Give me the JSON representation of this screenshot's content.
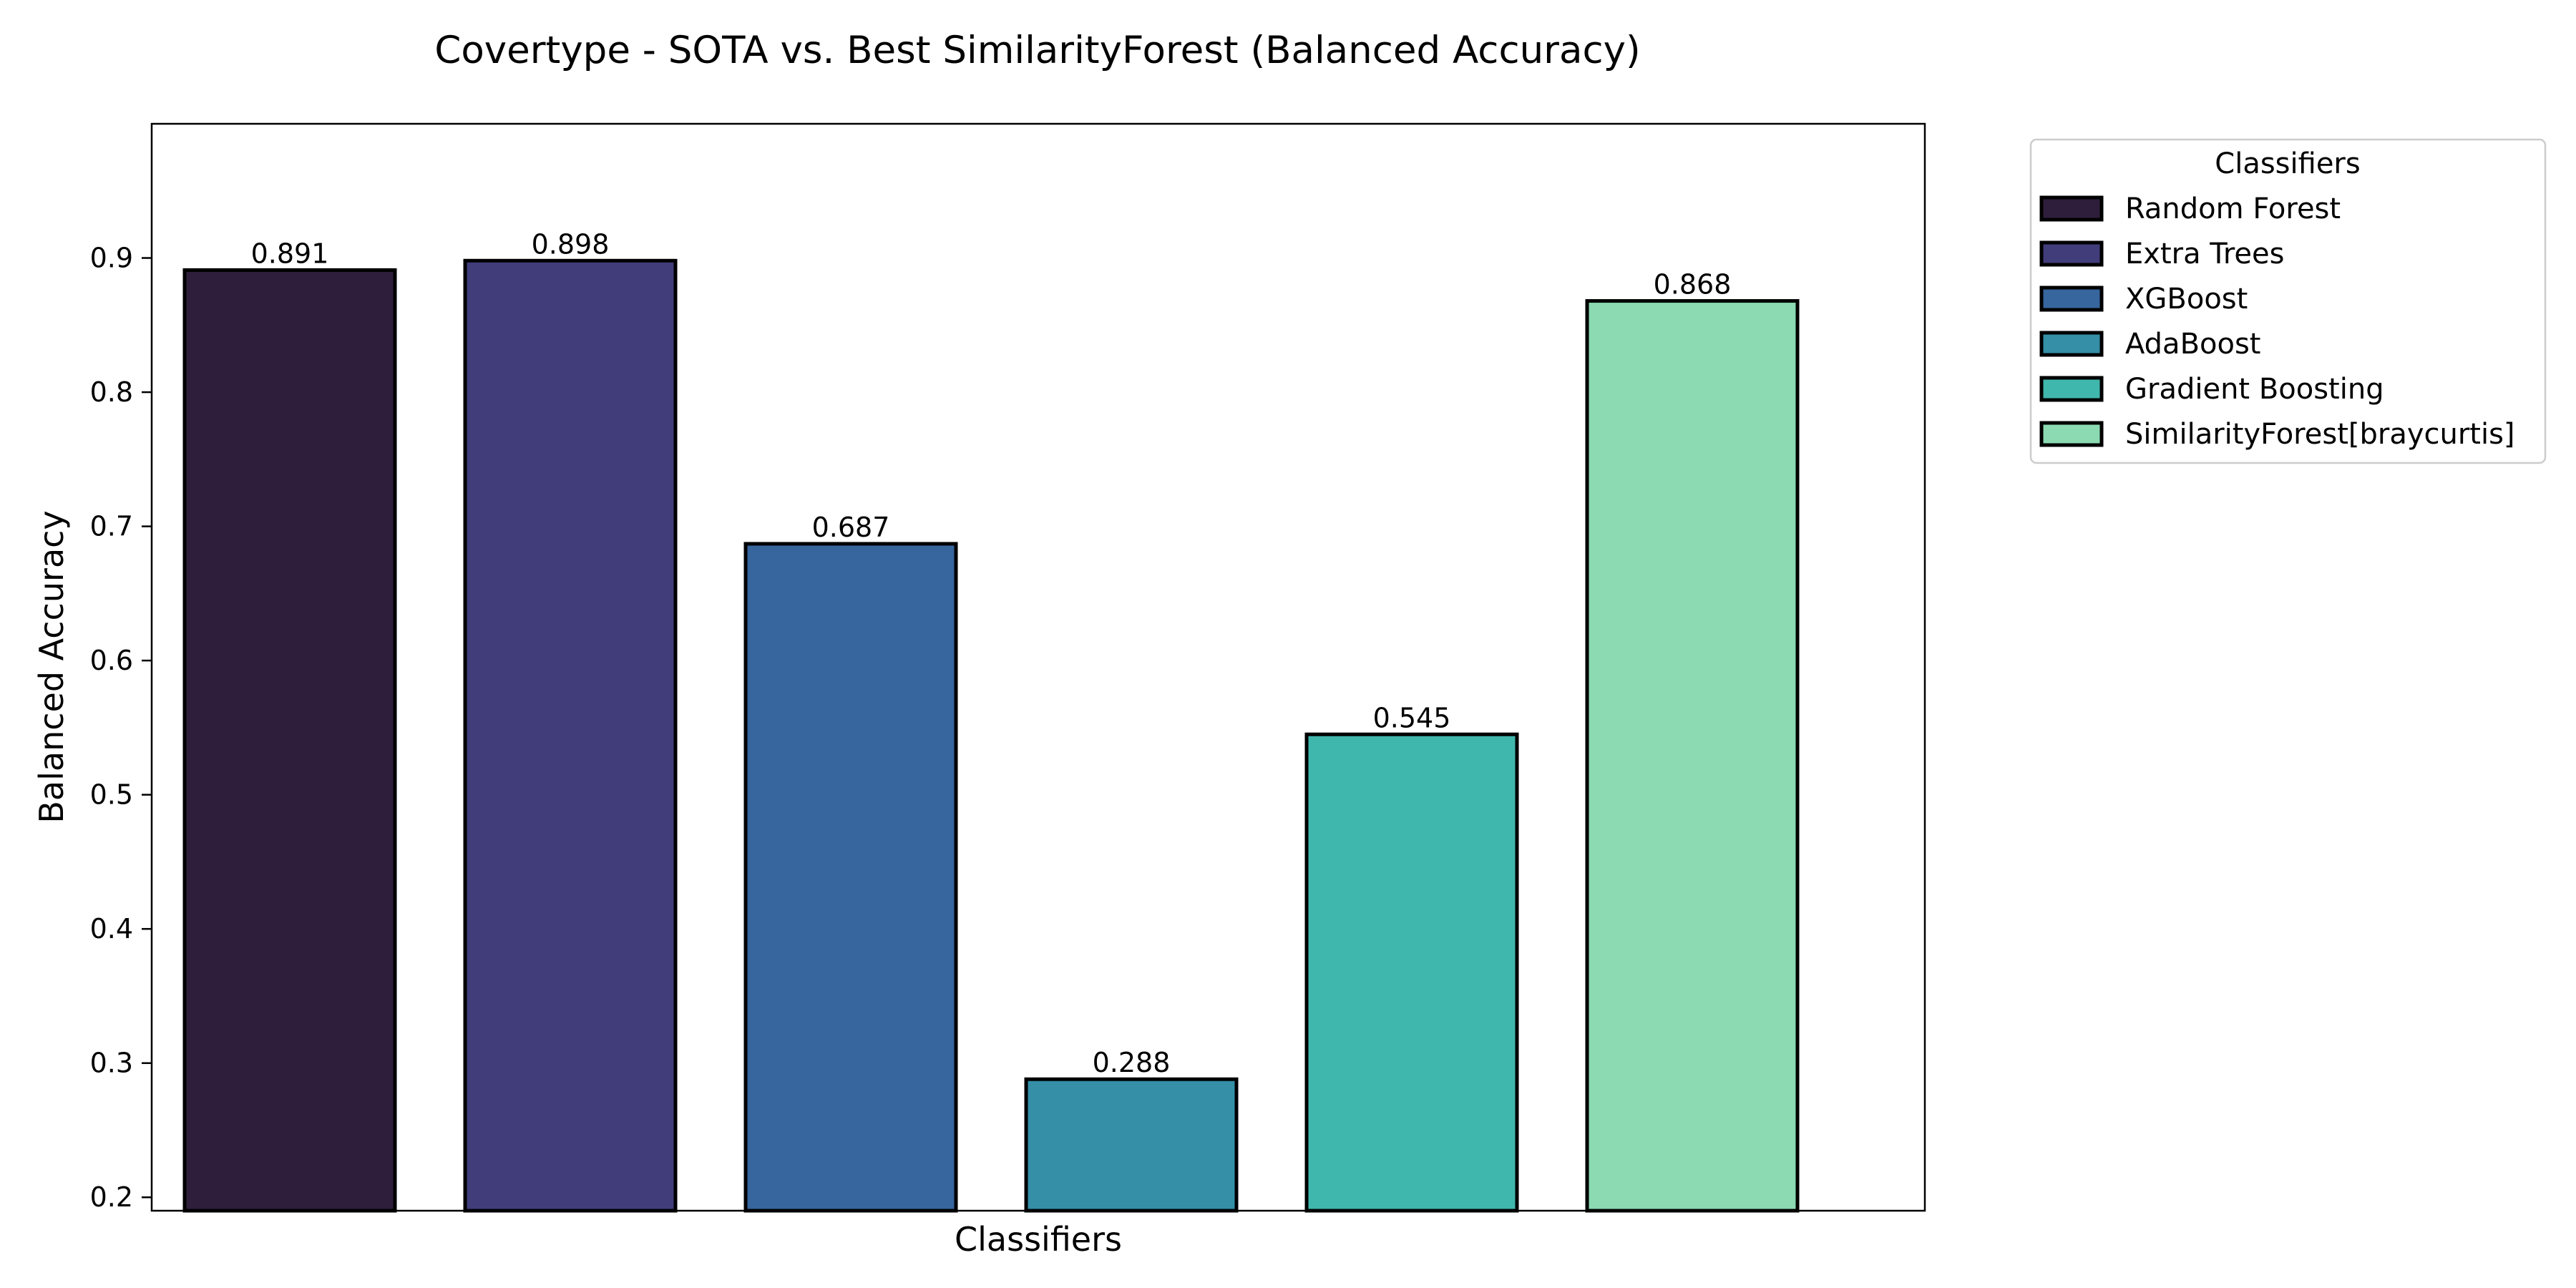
{
  "chart_data": {
    "type": "bar",
    "title": "Covertype - SOTA vs. Best SimilarityForest (Balanced Accuracy)",
    "xlabel": "Classifiers",
    "ylabel": "Balanced Accuracy",
    "ylim": [
      0.19,
      1.0
    ],
    "yticks": [
      0.2,
      0.3,
      0.4,
      0.5,
      0.6,
      0.7,
      0.8,
      0.9
    ],
    "ytick_labels": [
      "0.2",
      "0.3",
      "0.4",
      "0.5",
      "0.6",
      "0.7",
      "0.8",
      "0.9"
    ],
    "grid": false,
    "legend": {
      "title": "Classifiers",
      "placement": "outside-right-top"
    },
    "categories": [
      "Random Forest",
      "Extra Trees",
      "XGBoost",
      "AdaBoost",
      "Gradient Boosting",
      "SimilarityForest[braycurtis]"
    ],
    "values": [
      0.891,
      0.898,
      0.687,
      0.288,
      0.545,
      0.868
    ],
    "value_labels": [
      "0.891",
      "0.898",
      "0.687",
      "0.288",
      "0.545",
      "0.868"
    ],
    "colors": [
      "#2e1e3b",
      "#413d7b",
      "#37659e",
      "#348fa7",
      "#40b7ad",
      "#8bdab2"
    ]
  }
}
